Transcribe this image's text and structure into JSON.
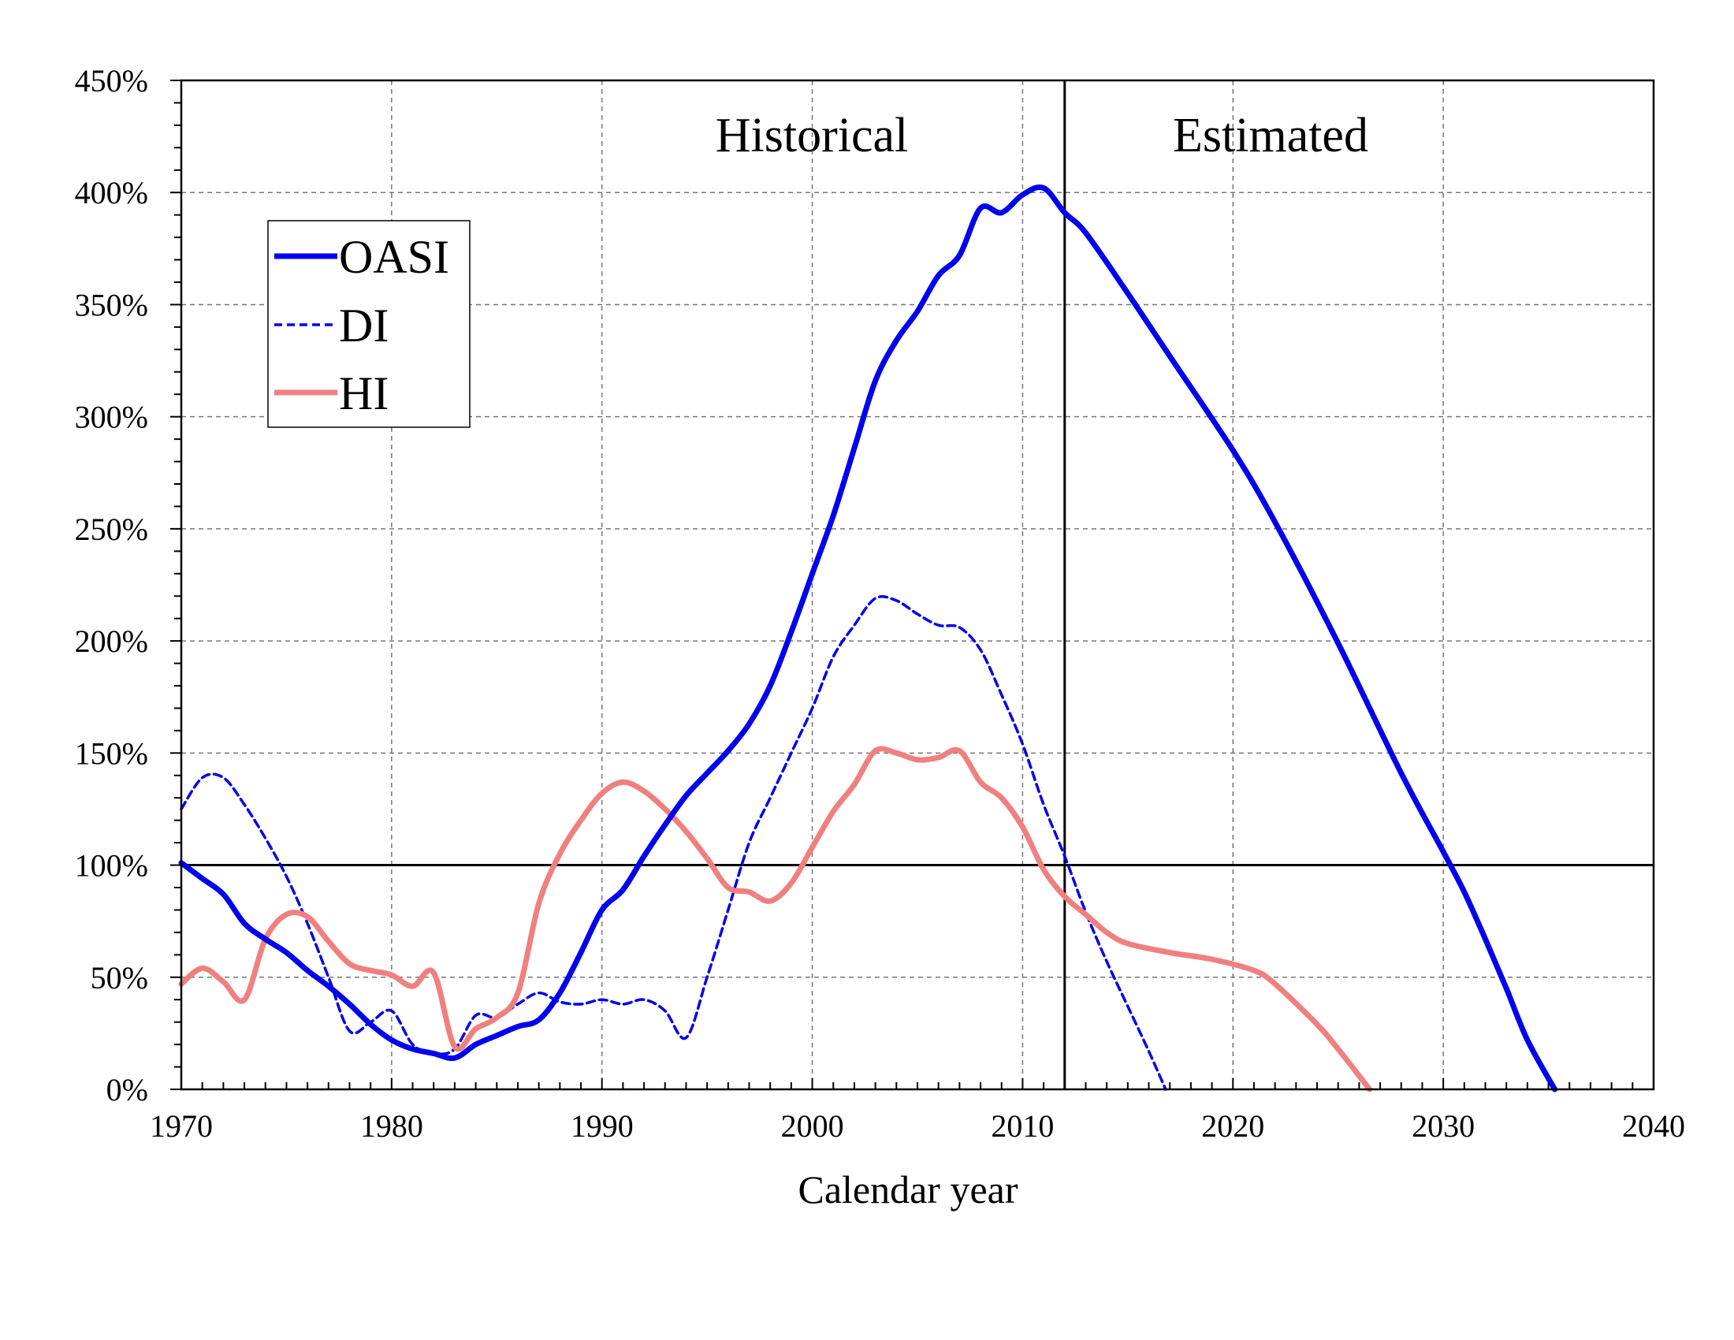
{
  "chart_data": {
    "type": "line",
    "xlabel": "Calendar year",
    "ylabel": "",
    "xlim": [
      1970,
      2040
    ],
    "ylim": [
      0,
      450
    ],
    "x_ticks": [
      "1970",
      "1980",
      "1990",
      "2000",
      "2010",
      "2020",
      "2030",
      "2040"
    ],
    "y_ticks": [
      "0%",
      "50%",
      "100%",
      "150%",
      "200%",
      "250%",
      "300%",
      "350%",
      "400%",
      "450%"
    ],
    "grid": true,
    "legend_position": "upper-left",
    "region_labels": [
      "Historical",
      "Estimated"
    ],
    "divider_year": 2012,
    "reference_line": 100,
    "series": [
      {
        "name": "OASI",
        "color": "#0000ee",
        "style": "solid",
        "points": [
          [
            1970,
            101
          ],
          [
            1971,
            94
          ],
          [
            1972,
            87
          ],
          [
            1973,
            74
          ],
          [
            1974,
            67
          ],
          [
            1975,
            61
          ],
          [
            1976,
            53
          ],
          [
            1977,
            46
          ],
          [
            1978,
            38
          ],
          [
            1979,
            29
          ],
          [
            1980,
            22
          ],
          [
            1981,
            18
          ],
          [
            1982,
            16
          ],
          [
            1983,
            14
          ],
          [
            1984,
            20
          ],
          [
            1985,
            24
          ],
          [
            1986,
            28
          ],
          [
            1987,
            31
          ],
          [
            1988,
            43
          ],
          [
            1989,
            61
          ],
          [
            1990,
            80
          ],
          [
            1991,
            89
          ],
          [
            1992,
            104
          ],
          [
            1993,
            118
          ],
          [
            1994,
            131
          ],
          [
            1995,
            141
          ],
          [
            1996,
            151
          ],
          [
            1997,
            163
          ],
          [
            1998,
            180
          ],
          [
            1999,
            204
          ],
          [
            2000,
            230
          ],
          [
            2001,
            256
          ],
          [
            2002,
            286
          ],
          [
            2003,
            316
          ],
          [
            2004,
            334
          ],
          [
            2005,
            347
          ],
          [
            2006,
            363
          ],
          [
            2007,
            372
          ],
          [
            2008,
            393
          ],
          [
            2009,
            391
          ],
          [
            2010,
            399
          ],
          [
            2011,
            402
          ],
          [
            2012,
            391
          ],
          [
            2013,
            382
          ],
          [
            2015,
            355
          ],
          [
            2017,
            327
          ],
          [
            2020,
            285
          ],
          [
            2022,
            253
          ],
          [
            2025,
            199
          ],
          [
            2028,
            141
          ],
          [
            2030,
            106
          ],
          [
            2031,
            88
          ],
          [
            2032,
            67
          ],
          [
            2033,
            45
          ],
          [
            2034,
            22
          ],
          [
            2035.3,
            0
          ]
        ]
      },
      {
        "name": "DI",
        "color": "#0000ee",
        "style": "dashed",
        "points": [
          [
            1970,
            125
          ],
          [
            1971,
            139
          ],
          [
            1972,
            139
          ],
          [
            1973,
            127
          ],
          [
            1974,
            112
          ],
          [
            1975,
            95
          ],
          [
            1976,
            74
          ],
          [
            1977,
            50
          ],
          [
            1978,
            26
          ],
          [
            1979,
            30
          ],
          [
            1980,
            35
          ],
          [
            1981,
            20
          ],
          [
            1982,
            16
          ],
          [
            1983,
            18
          ],
          [
            1984,
            33
          ],
          [
            1985,
            32
          ],
          [
            1986,
            38
          ],
          [
            1987,
            43
          ],
          [
            1988,
            39
          ],
          [
            1989,
            38
          ],
          [
            1990,
            40
          ],
          [
            1991,
            38
          ],
          [
            1992,
            40
          ],
          [
            1993,
            35
          ],
          [
            1994,
            23
          ],
          [
            1995,
            50
          ],
          [
            1996,
            80
          ],
          [
            1997,
            110
          ],
          [
            1998,
            130
          ],
          [
            1999,
            150
          ],
          [
            2000,
            170
          ],
          [
            2001,
            193
          ],
          [
            2002,
            207
          ],
          [
            2003,
            219
          ],
          [
            2004,
            218
          ],
          [
            2005,
            212
          ],
          [
            2006,
            207
          ],
          [
            2007,
            206
          ],
          [
            2008,
            196
          ],
          [
            2009,
            176
          ],
          [
            2010,
            154
          ],
          [
            2011,
            127
          ],
          [
            2012,
            104
          ],
          [
            2013,
            79
          ],
          [
            2014,
            57
          ],
          [
            2015,
            37
          ],
          [
            2016,
            17
          ],
          [
            2016.8,
            0
          ]
        ]
      },
      {
        "name": "HI",
        "color": "#f08080",
        "style": "solid",
        "points": [
          [
            1970,
            47
          ],
          [
            1971,
            54
          ],
          [
            1972,
            48
          ],
          [
            1973,
            40
          ],
          [
            1974,
            67
          ],
          [
            1975,
            78
          ],
          [
            1976,
            77
          ],
          [
            1977,
            66
          ],
          [
            1978,
            56
          ],
          [
            1979,
            53
          ],
          [
            1980,
            51
          ],
          [
            1981,
            46
          ],
          [
            1982,
            52
          ],
          [
            1983,
            19
          ],
          [
            1984,
            27
          ],
          [
            1985,
            32
          ],
          [
            1986,
            43
          ],
          [
            1987,
            83
          ],
          [
            1988,
            105
          ],
          [
            1989,
            120
          ],
          [
            1990,
            132
          ],
          [
            1991,
            137
          ],
          [
            1992,
            133
          ],
          [
            1993,
            125
          ],
          [
            1994,
            115
          ],
          [
            1995,
            103
          ],
          [
            1996,
            90
          ],
          [
            1997,
            88
          ],
          [
            1998,
            84
          ],
          [
            1999,
            92
          ],
          [
            2000,
            108
          ],
          [
            2001,
            124
          ],
          [
            2002,
            136
          ],
          [
            2003,
            151
          ],
          [
            2004,
            150
          ],
          [
            2005,
            147
          ],
          [
            2006,
            148
          ],
          [
            2007,
            151
          ],
          [
            2008,
            137
          ],
          [
            2009,
            130
          ],
          [
            2010,
            117
          ],
          [
            2011,
            98
          ],
          [
            2012,
            86
          ],
          [
            2013,
            78
          ],
          [
            2014,
            70
          ],
          [
            2015,
            65
          ],
          [
            2017,
            61
          ],
          [
            2019,
            58
          ],
          [
            2021,
            53
          ],
          [
            2022,
            47
          ],
          [
            2024,
            29
          ],
          [
            2025,
            18
          ],
          [
            2026.5,
            0
          ]
        ]
      }
    ]
  }
}
